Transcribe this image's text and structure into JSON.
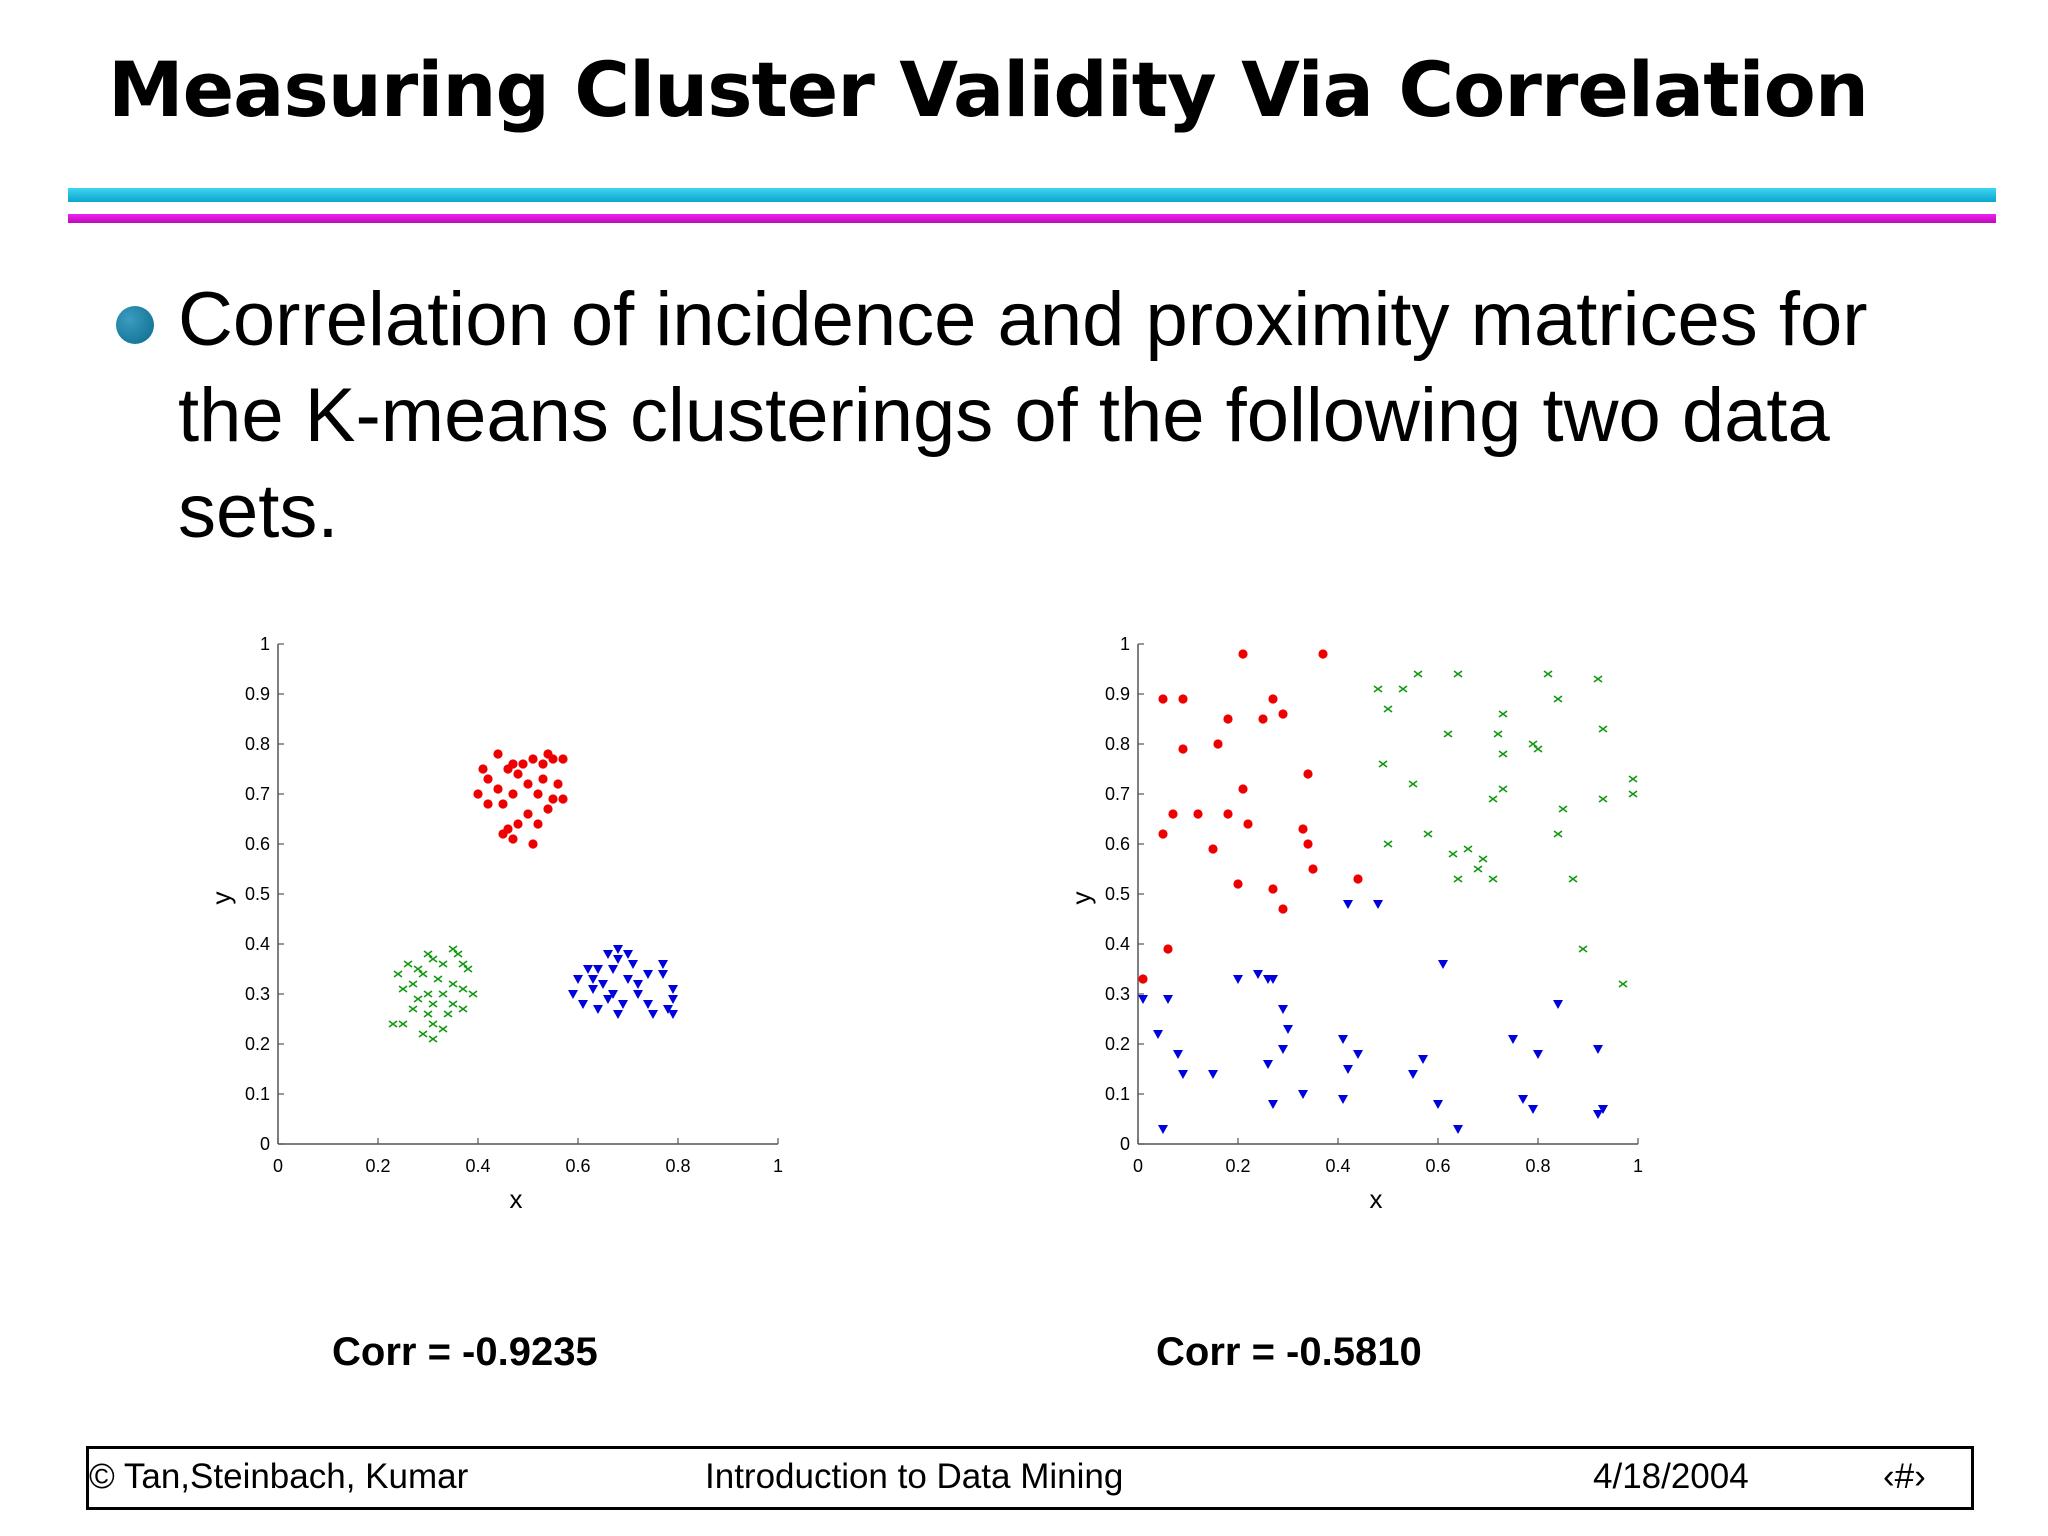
{
  "slide": {
    "title": "Measuring Cluster Validity Via Correlation",
    "bullet": "Correlation of incidence and proximity matrices for the K-means clusterings of the following two data sets.",
    "correlations": [
      "Corr = -0.9235",
      "Corr = -0.5810"
    ],
    "footer": {
      "left": "© Tan,Steinbach, Kumar",
      "center": "Introduction to Data Mining",
      "date": "4/18/2004",
      "page": "‹#›"
    }
  },
  "chart_data": [
    {
      "type": "scatter",
      "xlabel": "x",
      "ylabel": "y",
      "xlim": [
        0,
        1
      ],
      "ylim": [
        0,
        1
      ],
      "xticks": [
        "0",
        "0.2",
        "0.4",
        "0.6",
        "0.8",
        "1"
      ],
      "yticks": [
        "0",
        "0.1",
        "0.2",
        "0.3",
        "0.4",
        "0.5",
        "0.6",
        "0.7",
        "0.8",
        "0.9",
        "1"
      ],
      "series": [
        {
          "color": "#ee0000",
          "marker": "circle",
          "points": [
            [
              0.44,
              0.78
            ],
            [
              0.47,
              0.76
            ],
            [
              0.49,
              0.76
            ],
            [
              0.51,
              0.77
            ],
            [
              0.54,
              0.78
            ],
            [
              0.55,
              0.77
            ],
            [
              0.57,
              0.77
            ],
            [
              0.41,
              0.75
            ],
            [
              0.46,
              0.75
            ],
            [
              0.53,
              0.76
            ],
            [
              0.42,
              0.73
            ],
            [
              0.48,
              0.74
            ],
            [
              0.5,
              0.72
            ],
            [
              0.53,
              0.73
            ],
            [
              0.56,
              0.72
            ],
            [
              0.4,
              0.7
            ],
            [
              0.44,
              0.71
            ],
            [
              0.47,
              0.7
            ],
            [
              0.52,
              0.7
            ],
            [
              0.55,
              0.69
            ],
            [
              0.57,
              0.69
            ],
            [
              0.42,
              0.68
            ],
            [
              0.45,
              0.68
            ],
            [
              0.5,
              0.66
            ],
            [
              0.54,
              0.67
            ],
            [
              0.48,
              0.64
            ],
            [
              0.52,
              0.64
            ],
            [
              0.45,
              0.62
            ],
            [
              0.47,
              0.61
            ],
            [
              0.51,
              0.6
            ],
            [
              0.46,
              0.63
            ]
          ]
        },
        {
          "color": "#119911",
          "marker": "cross",
          "points": [
            [
              0.35,
              0.39
            ],
            [
              0.36,
              0.38
            ],
            [
              0.3,
              0.38
            ],
            [
              0.31,
              0.37
            ],
            [
              0.33,
              0.36
            ],
            [
              0.37,
              0.36
            ],
            [
              0.26,
              0.36
            ],
            [
              0.28,
              0.35
            ],
            [
              0.38,
              0.35
            ],
            [
              0.24,
              0.34
            ],
            [
              0.29,
              0.34
            ],
            [
              0.32,
              0.33
            ],
            [
              0.35,
              0.32
            ],
            [
              0.27,
              0.32
            ],
            [
              0.3,
              0.3
            ],
            [
              0.33,
              0.3
            ],
            [
              0.37,
              0.31
            ],
            [
              0.39,
              0.3
            ],
            [
              0.25,
              0.31
            ],
            [
              0.28,
              0.29
            ],
            [
              0.31,
              0.28
            ],
            [
              0.35,
              0.28
            ],
            [
              0.27,
              0.27
            ],
            [
              0.3,
              0.26
            ],
            [
              0.34,
              0.26
            ],
            [
              0.23,
              0.24
            ],
            [
              0.25,
              0.24
            ],
            [
              0.31,
              0.24
            ],
            [
              0.33,
              0.23
            ],
            [
              0.29,
              0.22
            ],
            [
              0.31,
              0.21
            ],
            [
              0.37,
              0.27
            ]
          ]
        },
        {
          "color": "#0000dd",
          "marker": "triangle",
          "points": [
            [
              0.68,
              0.39
            ],
            [
              0.7,
              0.38
            ],
            [
              0.66,
              0.38
            ],
            [
              0.68,
              0.37
            ],
            [
              0.77,
              0.36
            ],
            [
              0.71,
              0.36
            ],
            [
              0.62,
              0.35
            ],
            [
              0.64,
              0.35
            ],
            [
              0.67,
              0.35
            ],
            [
              0.77,
              0.34
            ],
            [
              0.74,
              0.34
            ],
            [
              0.6,
              0.33
            ],
            [
              0.63,
              0.33
            ],
            [
              0.7,
              0.33
            ],
            [
              0.72,
              0.32
            ],
            [
              0.65,
              0.32
            ],
            [
              0.79,
              0.31
            ],
            [
              0.67,
              0.3
            ],
            [
              0.72,
              0.3
            ],
            [
              0.59,
              0.3
            ],
            [
              0.79,
              0.29
            ],
            [
              0.66,
              0.29
            ],
            [
              0.69,
              0.28
            ],
            [
              0.74,
              0.28
            ],
            [
              0.61,
              0.28
            ],
            [
              0.64,
              0.27
            ],
            [
              0.68,
              0.26
            ],
            [
              0.75,
              0.26
            ],
            [
              0.79,
              0.26
            ],
            [
              0.63,
              0.31
            ],
            [
              0.78,
              0.27
            ]
          ]
        }
      ]
    },
    {
      "type": "scatter",
      "xlabel": "x",
      "ylabel": "y",
      "xlim": [
        0,
        1
      ],
      "ylim": [
        0,
        1
      ],
      "xticks": [
        "0",
        "0.2",
        "0.4",
        "0.6",
        "0.8",
        "1"
      ],
      "yticks": [
        "0",
        "0.1",
        "0.2",
        "0.3",
        "0.4",
        "0.5",
        "0.6",
        "0.7",
        "0.8",
        "0.9",
        "1"
      ],
      "series": [
        {
          "color": "#ee0000",
          "marker": "circle",
          "points": [
            [
              0.21,
              0.98
            ],
            [
              0.37,
              0.98
            ],
            [
              0.05,
              0.89
            ],
            [
              0.09,
              0.89
            ],
            [
              0.27,
              0.89
            ],
            [
              0.29,
              0.86
            ],
            [
              0.18,
              0.85
            ],
            [
              0.25,
              0.85
            ],
            [
              0.16,
              0.8
            ],
            [
              0.09,
              0.79
            ],
            [
              0.34,
              0.74
            ],
            [
              0.21,
              0.71
            ],
            [
              0.18,
              0.66
            ],
            [
              0.12,
              0.66
            ],
            [
              0.07,
              0.66
            ],
            [
              0.22,
              0.64
            ],
            [
              0.33,
              0.63
            ],
            [
              0.05,
              0.62
            ],
            [
              0.34,
              0.6
            ],
            [
              0.15,
              0.59
            ],
            [
              0.35,
              0.55
            ],
            [
              0.44,
              0.53
            ],
            [
              0.2,
              0.52
            ],
            [
              0.27,
              0.51
            ],
            [
              0.29,
              0.47
            ],
            [
              0.06,
              0.39
            ],
            [
              0.01,
              0.33
            ]
          ]
        },
        {
          "color": "#119911",
          "marker": "cross",
          "points": [
            [
              0.56,
              0.94
            ],
            [
              0.64,
              0.94
            ],
            [
              0.82,
              0.94
            ],
            [
              0.92,
              0.93
            ],
            [
              0.53,
              0.91
            ],
            [
              0.48,
              0.91
            ],
            [
              0.84,
              0.89
            ],
            [
              0.5,
              0.87
            ],
            [
              0.73,
              0.86
            ],
            [
              0.93,
              0.83
            ],
            [
              0.62,
              0.82
            ],
            [
              0.72,
              0.82
            ],
            [
              0.79,
              0.8
            ],
            [
              0.73,
              0.78
            ],
            [
              0.8,
              0.79
            ],
            [
              0.49,
              0.76
            ],
            [
              0.55,
              0.72
            ],
            [
              0.99,
              0.73
            ],
            [
              0.73,
              0.71
            ],
            [
              0.71,
              0.69
            ],
            [
              0.93,
              0.69
            ],
            [
              0.99,
              0.7
            ],
            [
              0.85,
              0.67
            ],
            [
              0.84,
              0.62
            ],
            [
              0.58,
              0.62
            ],
            [
              0.5,
              0.6
            ],
            [
              0.66,
              0.59
            ],
            [
              0.63,
              0.58
            ],
            [
              0.69,
              0.57
            ],
            [
              0.71,
              0.53
            ],
            [
              0.68,
              0.55
            ],
            [
              0.87,
              0.53
            ],
            [
              0.64,
              0.53
            ],
            [
              0.89,
              0.39
            ],
            [
              0.97,
              0.32
            ]
          ]
        },
        {
          "color": "#0000dd",
          "marker": "triangle",
          "points": [
            [
              0.42,
              0.48
            ],
            [
              0.48,
              0.48
            ],
            [
              0.61,
              0.36
            ],
            [
              0.24,
              0.34
            ],
            [
              0.2,
              0.33
            ],
            [
              0.26,
              0.33
            ],
            [
              0.27,
              0.33
            ],
            [
              0.01,
              0.29
            ],
            [
              0.06,
              0.29
            ],
            [
              0.84,
              0.28
            ],
            [
              0.29,
              0.27
            ],
            [
              0.3,
              0.23
            ],
            [
              0.04,
              0.22
            ],
            [
              0.41,
              0.21
            ],
            [
              0.75,
              0.21
            ],
            [
              0.29,
              0.19
            ],
            [
              0.92,
              0.19
            ],
            [
              0.44,
              0.18
            ],
            [
              0.08,
              0.18
            ],
            [
              0.8,
              0.18
            ],
            [
              0.57,
              0.17
            ],
            [
              0.26,
              0.16
            ],
            [
              0.42,
              0.15
            ],
            [
              0.09,
              0.14
            ],
            [
              0.15,
              0.14
            ],
            [
              0.55,
              0.14
            ],
            [
              0.33,
              0.1
            ],
            [
              0.41,
              0.09
            ],
            [
              0.77,
              0.09
            ],
            [
              0.27,
              0.08
            ],
            [
              0.6,
              0.08
            ],
            [
              0.79,
              0.07
            ],
            [
              0.93,
              0.07
            ],
            [
              0.92,
              0.06
            ],
            [
              0.05,
              0.03
            ],
            [
              0.64,
              0.03
            ]
          ]
        }
      ]
    }
  ]
}
